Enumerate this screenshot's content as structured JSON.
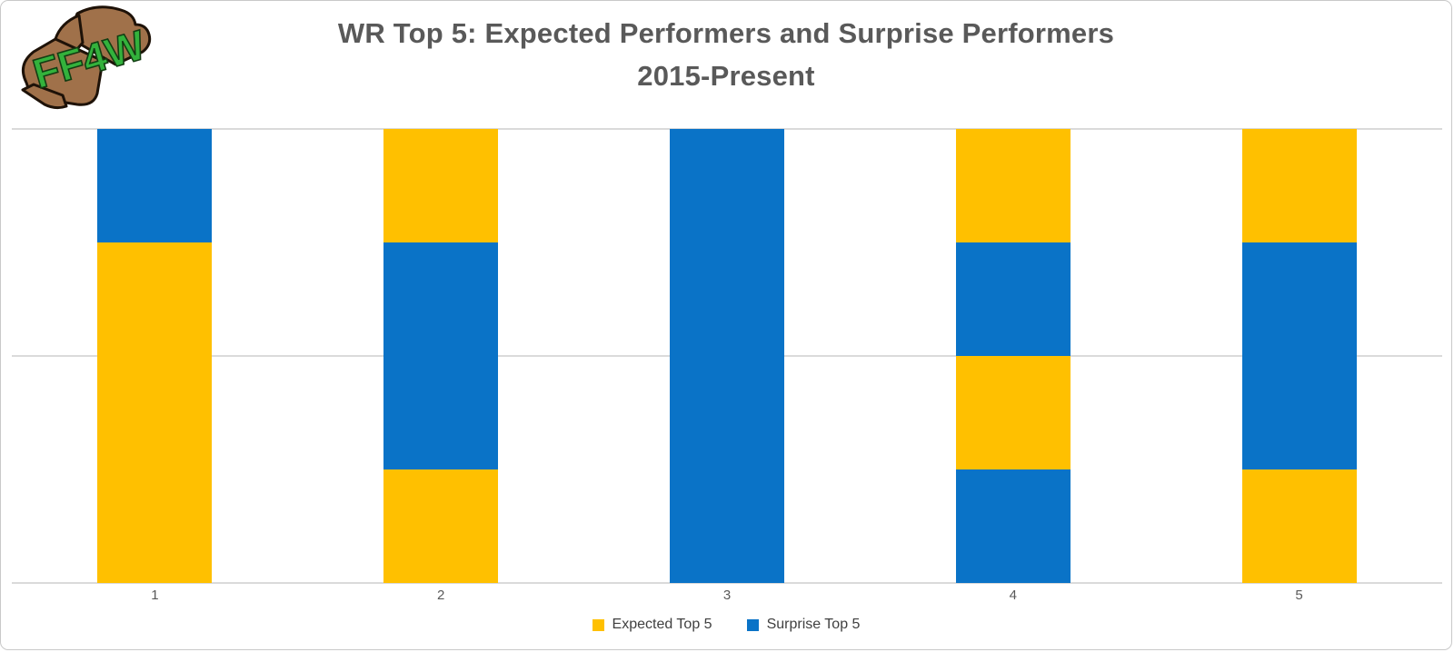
{
  "logo": {
    "text": "FF4W"
  },
  "title": {
    "line1": "WR Top 5: Expected Performers and Surprise Performers",
    "line2": "2015-Present"
  },
  "chart_data": {
    "type": "bar",
    "stacked": true,
    "title": "WR Top 5: Expected Performers and Surprise Performers",
    "subtitle": "2015-Present",
    "categories": [
      "1",
      "2",
      "3",
      "4",
      "5"
    ],
    "xlabel": "",
    "ylabel": "",
    "ylim": [
      0,
      4
    ],
    "segment_unit": 1,
    "gridline_values": [
      0,
      2,
      4
    ],
    "grid": true,
    "legend_position": "bottom",
    "bar_width_ratio": 0.4,
    "series": [
      {
        "name": "Expected Top 5",
        "color": "#FFC000",
        "values": [
          3,
          2,
          0,
          2,
          2
        ]
      },
      {
        "name": "Surprise Top 5",
        "color": "#0A73C7",
        "values": [
          1,
          2,
          4,
          2,
          2
        ]
      }
    ],
    "stacks_bottom_to_top": [
      [
        "Expected Top 5",
        "Expected Top 5",
        "Expected Top 5",
        "Surprise Top 5"
      ],
      [
        "Expected Top 5",
        "Surprise Top 5",
        "Surprise Top 5",
        "Expected Top 5"
      ],
      [
        "Surprise Top 5",
        "Surprise Top 5",
        "Surprise Top 5",
        "Surprise Top 5"
      ],
      [
        "Surprise Top 5",
        "Expected Top 5",
        "Surprise Top 5",
        "Expected Top 5"
      ],
      [
        "Expected Top 5",
        "Surprise Top 5",
        "Surprise Top 5",
        "Expected Top 5"
      ]
    ],
    "legend": [
      "Expected Top 5",
      "Surprise Top 5"
    ]
  },
  "colors": {
    "expected": "#FFC000",
    "surprise": "#0A73C7",
    "gridline": "#DADADA",
    "title_text": "#595959",
    "axis_text": "#595959",
    "legend_text": "#404040",
    "border": "#C9C9C9",
    "logo_hand": "#A0714A",
    "logo_letters": "#33B23C"
  }
}
